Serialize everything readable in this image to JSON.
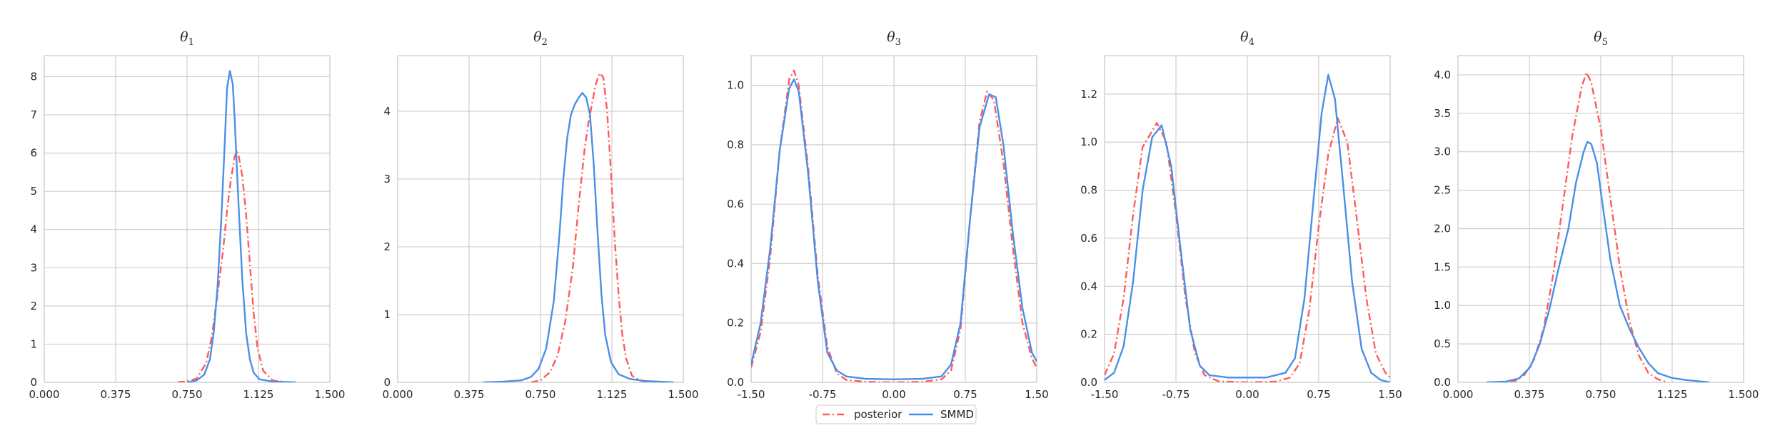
{
  "colors": {
    "posterior": "#ff5c5c",
    "smmd": "#4a8fe8",
    "grid": "#cfcfcf",
    "frame": "#cccccc"
  },
  "legend": {
    "placement": "bottom-center",
    "items": [
      {
        "label": "posterior",
        "style": "dashdot",
        "color": "#ff5c5c"
      },
      {
        "label": "SMMD",
        "style": "solid",
        "color": "#4a8fe8"
      }
    ]
  },
  "chart_data": [
    {
      "type": "line",
      "title_symbol": "θ",
      "title_sub": "1",
      "xlim": [
        0,
        1.5
      ],
      "ylim": [
        0,
        8.55
      ],
      "xticks": [
        "0.000",
        "0.375",
        "0.750",
        "1.125",
        "1.500"
      ],
      "yticks": [
        "0",
        "1",
        "2",
        "3",
        "4",
        "5",
        "6",
        "7",
        "8"
      ],
      "grid": true,
      "series": [
        {
          "name": "posterior",
          "points": [
            [
              0.7,
              0
            ],
            [
              0.75,
              0.03
            ],
            [
              0.8,
              0.1
            ],
            [
              0.85,
              0.5
            ],
            [
              0.88,
              1.2
            ],
            [
              0.91,
              2.3
            ],
            [
              0.94,
              3.5
            ],
            [
              0.96,
              4.5
            ],
            [
              0.98,
              5.3
            ],
            [
              1.0,
              5.9
            ],
            [
              1.01,
              6.05
            ],
            [
              1.02,
              5.95
            ],
            [
              1.04,
              5.4
            ],
            [
              1.06,
              4.4
            ],
            [
              1.08,
              3.1
            ],
            [
              1.1,
              1.8
            ],
            [
              1.12,
              0.9
            ],
            [
              1.15,
              0.3
            ],
            [
              1.2,
              0.05
            ],
            [
              1.28,
              0
            ]
          ]
        },
        {
          "name": "SMMD",
          "points": [
            [
              0.75,
              0
            ],
            [
              0.8,
              0.05
            ],
            [
              0.84,
              0.2
            ],
            [
              0.87,
              0.6
            ],
            [
              0.89,
              1.3
            ],
            [
              0.91,
              2.5
            ],
            [
              0.93,
              4.3
            ],
            [
              0.95,
              6.5
            ],
            [
              0.96,
              7.7
            ],
            [
              0.975,
              8.15
            ],
            [
              0.99,
              7.8
            ],
            [
              1.0,
              6.9
            ],
            [
              1.02,
              4.7
            ],
            [
              1.04,
              2.7
            ],
            [
              1.06,
              1.3
            ],
            [
              1.08,
              0.6
            ],
            [
              1.1,
              0.25
            ],
            [
              1.13,
              0.08
            ],
            [
              1.2,
              0.02
            ],
            [
              1.32,
              0
            ]
          ]
        }
      ]
    },
    {
      "type": "line",
      "title_symbol": "θ",
      "title_sub": "2",
      "xlim": [
        0,
        1.5
      ],
      "ylim": [
        0,
        4.82
      ],
      "xticks": [
        "0.000",
        "0.375",
        "0.750",
        "1.125",
        "1.500"
      ],
      "yticks": [
        "0",
        "1",
        "2",
        "3",
        "4"
      ],
      "grid": true,
      "series": [
        {
          "name": "posterior",
          "points": [
            [
              0.7,
              0
            ],
            [
              0.75,
              0.03
            ],
            [
              0.8,
              0.15
            ],
            [
              0.84,
              0.4
            ],
            [
              0.88,
              0.9
            ],
            [
              0.92,
              1.7
            ],
            [
              0.95,
              2.6
            ],
            [
              0.98,
              3.4
            ],
            [
              1.0,
              3.8
            ],
            [
              1.02,
              4.1
            ],
            [
              1.04,
              4.4
            ],
            [
              1.06,
              4.56
            ],
            [
              1.08,
              4.5
            ],
            [
              1.1,
              4.0
            ],
            [
              1.12,
              3.1
            ],
            [
              1.14,
              2.1
            ],
            [
              1.16,
              1.3
            ],
            [
              1.18,
              0.7
            ],
            [
              1.2,
              0.35
            ],
            [
              1.23,
              0.1
            ],
            [
              1.28,
              0.02
            ],
            [
              1.32,
              0
            ]
          ]
        },
        {
          "name": "SMMD",
          "points": [
            [
              0.45,
              0
            ],
            [
              0.55,
              0.01
            ],
            [
              0.65,
              0.03
            ],
            [
              0.7,
              0.08
            ],
            [
              0.74,
              0.2
            ],
            [
              0.78,
              0.5
            ],
            [
              0.82,
              1.2
            ],
            [
              0.85,
              2.2
            ],
            [
              0.87,
              3.0
            ],
            [
              0.89,
              3.6
            ],
            [
              0.91,
              3.95
            ],
            [
              0.93,
              4.1
            ],
            [
              0.95,
              4.2
            ],
            [
              0.97,
              4.27
            ],
            [
              0.99,
              4.2
            ],
            [
              1.01,
              3.95
            ],
            [
              1.03,
              3.2
            ],
            [
              1.05,
              2.2
            ],
            [
              1.07,
              1.3
            ],
            [
              1.09,
              0.7
            ],
            [
              1.12,
              0.3
            ],
            [
              1.16,
              0.12
            ],
            [
              1.22,
              0.05
            ],
            [
              1.3,
              0.02
            ],
            [
              1.45,
              0
            ]
          ]
        }
      ]
    },
    {
      "type": "line",
      "title_symbol": "θ",
      "title_sub": "3",
      "xlim": [
        -1.5,
        1.5
      ],
      "ylim": [
        0,
        1.1
      ],
      "xticks": [
        "-1.50",
        "-0.75",
        "0.00",
        "0.75",
        "1.50"
      ],
      "yticks": [
        "0.0",
        "0.2",
        "0.4",
        "0.6",
        "0.8",
        "1.0"
      ],
      "grid": true,
      "series": [
        {
          "name": "posterior",
          "points": [
            [
              -1.5,
              0.05
            ],
            [
              -1.4,
              0.17
            ],
            [
              -1.3,
              0.42
            ],
            [
              -1.2,
              0.78
            ],
            [
              -1.1,
              1.02
            ],
            [
              -1.05,
              1.05
            ],
            [
              -1.0,
              1.0
            ],
            [
              -0.9,
              0.72
            ],
            [
              -0.8,
              0.36
            ],
            [
              -0.7,
              0.12
            ],
            [
              -0.6,
              0.03
            ],
            [
              -0.5,
              0.008
            ],
            [
              -0.3,
              0.002
            ],
            [
              0.0,
              0.0
            ],
            [
              0.3,
              0.002
            ],
            [
              0.5,
              0.01
            ],
            [
              0.6,
              0.04
            ],
            [
              0.7,
              0.18
            ],
            [
              0.8,
              0.55
            ],
            [
              0.9,
              0.88
            ],
            [
              0.98,
              0.98
            ],
            [
              1.05,
              0.95
            ],
            [
              1.15,
              0.74
            ],
            [
              1.25,
              0.45
            ],
            [
              1.35,
              0.2
            ],
            [
              1.45,
              0.08
            ],
            [
              1.5,
              0.05
            ]
          ]
        },
        {
          "name": "SMMD",
          "points": [
            [
              -1.5,
              0.06
            ],
            [
              -1.4,
              0.2
            ],
            [
              -1.3,
              0.45
            ],
            [
              -1.2,
              0.78
            ],
            [
              -1.1,
              0.99
            ],
            [
              -1.05,
              1.02
            ],
            [
              -1.0,
              0.98
            ],
            [
              -0.9,
              0.7
            ],
            [
              -0.8,
              0.34
            ],
            [
              -0.7,
              0.1
            ],
            [
              -0.6,
              0.04
            ],
            [
              -0.5,
              0.02
            ],
            [
              -0.3,
              0.012
            ],
            [
              0.0,
              0.01
            ],
            [
              0.3,
              0.012
            ],
            [
              0.5,
              0.02
            ],
            [
              0.6,
              0.06
            ],
            [
              0.7,
              0.2
            ],
            [
              0.8,
              0.55
            ],
            [
              0.9,
              0.86
            ],
            [
              1.0,
              0.97
            ],
            [
              1.07,
              0.96
            ],
            [
              1.15,
              0.8
            ],
            [
              1.25,
              0.5
            ],
            [
              1.35,
              0.25
            ],
            [
              1.45,
              0.1
            ],
            [
              1.5,
              0.07
            ]
          ]
        }
      ]
    },
    {
      "type": "line",
      "title_symbol": "θ",
      "title_sub": "4",
      "xlim": [
        -1.5,
        1.5
      ],
      "ylim": [
        0,
        1.36
      ],
      "xticks": [
        "-1.50",
        "-0.75",
        "0.00",
        "0.75",
        "1.50"
      ],
      "yticks": [
        "0.0",
        "0.2",
        "0.4",
        "0.6",
        "0.8",
        "1.0",
        "1.2"
      ],
      "grid": true,
      "series": [
        {
          "name": "posterior",
          "points": [
            [
              -1.5,
              0.03
            ],
            [
              -1.4,
              0.12
            ],
            [
              -1.3,
              0.35
            ],
            [
              -1.2,
              0.7
            ],
            [
              -1.1,
              0.98
            ],
            [
              -0.95,
              1.08
            ],
            [
              -0.85,
              1.0
            ],
            [
              -0.75,
              0.7
            ],
            [
              -0.65,
              0.35
            ],
            [
              -0.55,
              0.12
            ],
            [
              -0.45,
              0.03
            ],
            [
              -0.3,
              0.004
            ],
            [
              0.0,
              0.0
            ],
            [
              0.3,
              0.003
            ],
            [
              0.45,
              0.02
            ],
            [
              0.55,
              0.08
            ],
            [
              0.65,
              0.3
            ],
            [
              0.75,
              0.65
            ],
            [
              0.85,
              0.95
            ],
            [
              0.95,
              1.1
            ],
            [
              1.05,
              1.0
            ],
            [
              1.15,
              0.68
            ],
            [
              1.25,
              0.35
            ],
            [
              1.35,
              0.12
            ],
            [
              1.45,
              0.04
            ],
            [
              1.5,
              0.02
            ]
          ]
        },
        {
          "name": "SMMD",
          "points": [
            [
              -1.5,
              0.01
            ],
            [
              -1.4,
              0.04
            ],
            [
              -1.3,
              0.15
            ],
            [
              -1.2,
              0.42
            ],
            [
              -1.1,
              0.8
            ],
            [
              -1.0,
              1.02
            ],
            [
              -0.9,
              1.07
            ],
            [
              -0.8,
              0.9
            ],
            [
              -0.7,
              0.55
            ],
            [
              -0.6,
              0.22
            ],
            [
              -0.5,
              0.07
            ],
            [
              -0.4,
              0.03
            ],
            [
              -0.2,
              0.02
            ],
            [
              0.0,
              0.02
            ],
            [
              0.2,
              0.02
            ],
            [
              0.4,
              0.04
            ],
            [
              0.5,
              0.1
            ],
            [
              0.6,
              0.35
            ],
            [
              0.7,
              0.78
            ],
            [
              0.78,
              1.12
            ],
            [
              0.85,
              1.28
            ],
            [
              0.92,
              1.18
            ],
            [
              1.0,
              0.85
            ],
            [
              1.1,
              0.42
            ],
            [
              1.2,
              0.14
            ],
            [
              1.3,
              0.04
            ],
            [
              1.4,
              0.01
            ],
            [
              1.5,
              0
            ]
          ]
        }
      ]
    },
    {
      "type": "line",
      "title_symbol": "θ",
      "title_sub": "5",
      "xlim": [
        0,
        1.5
      ],
      "ylim": [
        0,
        4.25
      ],
      "xticks": [
        "0.000",
        "0.375",
        "0.750",
        "1.125",
        "1.500"
      ],
      "yticks": [
        "0.0",
        "0.5",
        "1.0",
        "1.5",
        "2.0",
        "2.5",
        "3.0",
        "3.5",
        "4.0"
      ],
      "grid": true,
      "series": [
        {
          "name": "posterior",
          "points": [
            [
              0.2,
              0
            ],
            [
              0.3,
              0.02
            ],
            [
              0.35,
              0.1
            ],
            [
              0.4,
              0.3
            ],
            [
              0.45,
              0.7
            ],
            [
              0.5,
              1.4
            ],
            [
              0.55,
              2.3
            ],
            [
              0.6,
              3.2
            ],
            [
              0.65,
              3.85
            ],
            [
              0.675,
              4.03
            ],
            [
              0.7,
              3.9
            ],
            [
              0.75,
              3.3
            ],
            [
              0.8,
              2.4
            ],
            [
              0.85,
              1.5
            ],
            [
              0.9,
              0.8
            ],
            [
              0.95,
              0.35
            ],
            [
              1.0,
              0.12
            ],
            [
              1.05,
              0.04
            ],
            [
              1.1,
              0
            ]
          ]
        },
        {
          "name": "SMMD",
          "points": [
            [
              0.15,
              0
            ],
            [
              0.25,
              0.01
            ],
            [
              0.32,
              0.05
            ],
            [
              0.38,
              0.2
            ],
            [
              0.43,
              0.5
            ],
            [
              0.48,
              0.95
            ],
            [
              0.53,
              1.5
            ],
            [
              0.58,
              2.0
            ],
            [
              0.62,
              2.6
            ],
            [
              0.66,
              3.0
            ],
            [
              0.68,
              3.13
            ],
            [
              0.7,
              3.1
            ],
            [
              0.73,
              2.85
            ],
            [
              0.76,
              2.3
            ],
            [
              0.8,
              1.6
            ],
            [
              0.85,
              1.0
            ],
            [
              0.9,
              0.7
            ],
            [
              0.95,
              0.45
            ],
            [
              1.0,
              0.25
            ],
            [
              1.05,
              0.12
            ],
            [
              1.12,
              0.06
            ],
            [
              1.2,
              0.03
            ],
            [
              1.32,
              0
            ]
          ]
        }
      ]
    }
  ]
}
